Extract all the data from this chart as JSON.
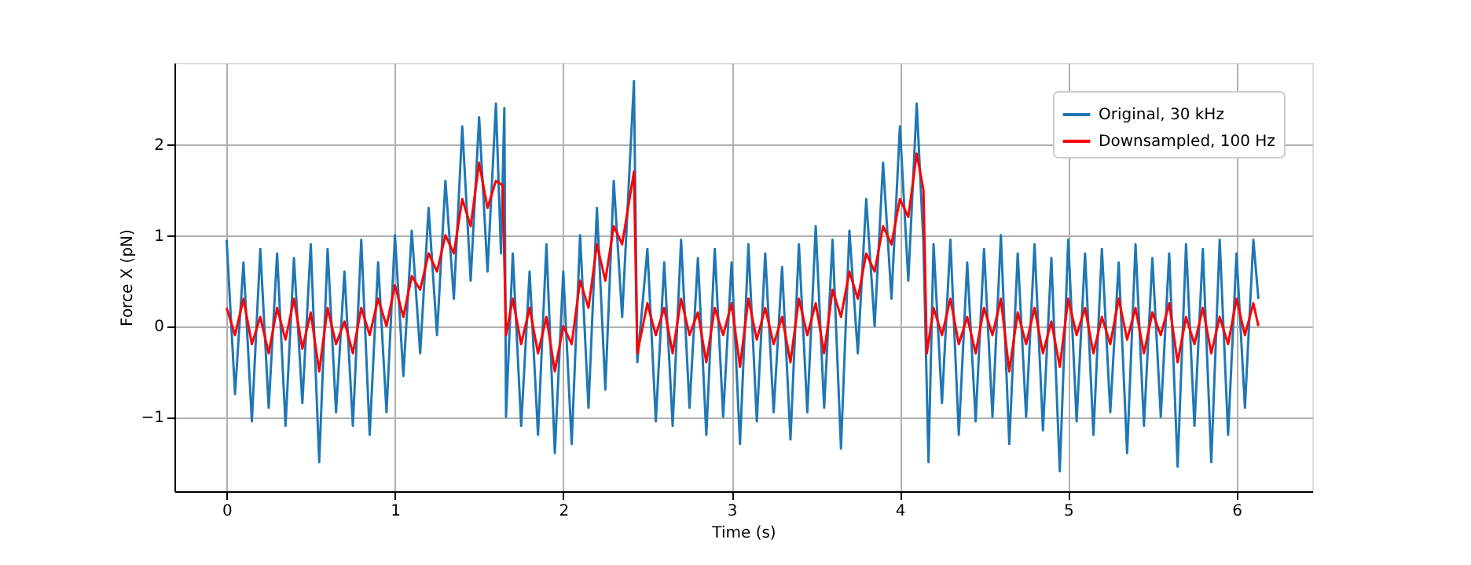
{
  "chart_data": {
    "type": "line",
    "xlabel": "Time (s)",
    "ylabel": "Force X (pN)",
    "xlim": [
      -0.31,
      6.45
    ],
    "ylim": [
      -1.82,
      2.9
    ],
    "xticks": [
      0,
      1,
      2,
      3,
      4,
      5,
      6
    ],
    "yticks": [
      {
        "value": -1,
        "label": "−1"
      },
      0,
      1,
      2
    ],
    "grid": true,
    "legend": "top right",
    "marker": "none",
    "line_style": "solid",
    "series": [
      {
        "name": "Original, 30 kHz",
        "color": "#1f77b4",
        "x": [
          0,
          0.05,
          0.1,
          0.15,
          0.2,
          0.25,
          0.3,
          0.35,
          0.4,
          0.45,
          0.5,
          0.55,
          0.6,
          0.65,
          0.7,
          0.75,
          0.8,
          0.85,
          0.9,
          0.95,
          1.0,
          1.05,
          1.1,
          1.15,
          1.2,
          1.25,
          1.3,
          1.35,
          1.4,
          1.45,
          1.5,
          1.55,
          1.6,
          1.63,
          1.65,
          1.66,
          1.7,
          1.75,
          1.8,
          1.85,
          1.9,
          1.95,
          2.0,
          2.05,
          2.1,
          2.15,
          2.2,
          2.25,
          2.3,
          2.35,
          2.42,
          2.44,
          2.5,
          2.55,
          2.6,
          2.65,
          2.7,
          2.75,
          2.8,
          2.85,
          2.9,
          2.95,
          3.0,
          3.05,
          3.1,
          3.15,
          3.2,
          3.25,
          3.3,
          3.35,
          3.4,
          3.45,
          3.5,
          3.55,
          3.6,
          3.65,
          3.7,
          3.75,
          3.8,
          3.85,
          3.9,
          3.95,
          4.0,
          4.05,
          4.1,
          4.14,
          4.17,
          4.2,
          4.25,
          4.3,
          4.35,
          4.4,
          4.45,
          4.5,
          4.55,
          4.6,
          4.65,
          4.7,
          4.75,
          4.8,
          4.85,
          4.9,
          4.95,
          5.0,
          5.05,
          5.1,
          5.15,
          5.2,
          5.25,
          5.3,
          5.35,
          5.4,
          5.45,
          5.5,
          5.55,
          5.6,
          5.65,
          5.7,
          5.75,
          5.8,
          5.85,
          5.9,
          5.95,
          6.0,
          6.05,
          6.1,
          6.13
        ],
        "values": [
          0.95,
          -0.75,
          0.7,
          -1.05,
          0.85,
          -0.9,
          0.8,
          -1.1,
          0.75,
          -0.85,
          0.9,
          -1.5,
          0.85,
          -0.95,
          0.6,
          -1.1,
          0.95,
          -1.2,
          0.7,
          -0.95,
          1.0,
          -0.55,
          1.05,
          -0.3,
          1.3,
          -0.1,
          1.6,
          0.3,
          2.2,
          0.5,
          2.3,
          0.6,
          2.45,
          0.8,
          2.4,
          -1.0,
          0.8,
          -1.1,
          0.6,
          -1.2,
          0.9,
          -1.4,
          0.6,
          -1.3,
          1.0,
          -0.9,
          1.3,
          -0.7,
          1.6,
          0.1,
          2.7,
          -0.4,
          0.85,
          -1.05,
          0.7,
          -1.1,
          0.95,
          -0.9,
          0.75,
          -1.2,
          0.85,
          -1.0,
          0.7,
          -1.3,
          0.9,
          -1.05,
          0.8,
          -0.95,
          0.65,
          -1.25,
          0.9,
          -0.95,
          1.1,
          -0.9,
          0.95,
          -1.35,
          1.05,
          -0.3,
          1.4,
          0.0,
          1.8,
          0.3,
          2.2,
          0.5,
          2.45,
          0.9,
          -1.5,
          0.9,
          -0.85,
          0.95,
          -1.2,
          0.7,
          -1.05,
          0.85,
          -1.0,
          1.0,
          -1.3,
          0.8,
          -1.0,
          0.9,
          -1.15,
          0.75,
          -1.6,
          0.95,
          -1.05,
          0.8,
          -1.2,
          0.85,
          -0.95,
          0.7,
          -1.4,
          0.9,
          -1.1,
          0.75,
          -1.0,
          0.8,
          -1.55,
          0.9,
          -1.1,
          0.85,
          -1.5,
          0.95,
          -1.2,
          0.8,
          -0.9,
          0.95,
          0.3
        ]
      },
      {
        "name": "Downsampled, 100 Hz",
        "color": "#ff0000",
        "x": [
          0,
          0.05,
          0.1,
          0.15,
          0.2,
          0.25,
          0.3,
          0.35,
          0.4,
          0.45,
          0.5,
          0.55,
          0.6,
          0.65,
          0.7,
          0.75,
          0.8,
          0.85,
          0.9,
          0.95,
          1.0,
          1.05,
          1.1,
          1.15,
          1.2,
          1.25,
          1.3,
          1.35,
          1.4,
          1.45,
          1.5,
          1.55,
          1.6,
          1.64,
          1.66,
          1.7,
          1.75,
          1.8,
          1.85,
          1.9,
          1.95,
          2.0,
          2.05,
          2.1,
          2.15,
          2.2,
          2.25,
          2.3,
          2.35,
          2.42,
          2.44,
          2.5,
          2.55,
          2.6,
          2.65,
          2.7,
          2.75,
          2.8,
          2.85,
          2.9,
          2.95,
          3.0,
          3.05,
          3.1,
          3.15,
          3.2,
          3.25,
          3.3,
          3.35,
          3.4,
          3.45,
          3.5,
          3.55,
          3.6,
          3.65,
          3.7,
          3.75,
          3.8,
          3.85,
          3.9,
          3.95,
          4.0,
          4.05,
          4.1,
          4.14,
          4.16,
          4.2,
          4.25,
          4.3,
          4.35,
          4.4,
          4.45,
          4.5,
          4.55,
          4.6,
          4.65,
          4.7,
          4.75,
          4.8,
          4.85,
          4.9,
          4.95,
          5.0,
          5.05,
          5.1,
          5.15,
          5.2,
          5.25,
          5.3,
          5.35,
          5.4,
          5.45,
          5.5,
          5.55,
          5.6,
          5.65,
          5.7,
          5.75,
          5.8,
          5.85,
          5.9,
          5.95,
          6.0,
          6.05,
          6.1,
          6.13
        ],
        "values": [
          0.2,
          -0.1,
          0.3,
          -0.2,
          0.1,
          -0.3,
          0.2,
          -0.15,
          0.3,
          -0.25,
          0.15,
          -0.5,
          0.2,
          -0.2,
          0.05,
          -0.3,
          0.2,
          -0.1,
          0.3,
          0.0,
          0.45,
          0.1,
          0.55,
          0.4,
          0.8,
          0.6,
          1.0,
          0.8,
          1.4,
          1.1,
          1.8,
          1.3,
          1.6,
          1.55,
          -0.1,
          0.3,
          -0.2,
          0.2,
          -0.3,
          0.1,
          -0.5,
          0.0,
          -0.2,
          0.5,
          0.2,
          0.9,
          0.5,
          1.1,
          0.9,
          1.7,
          -0.3,
          0.25,
          -0.1,
          0.2,
          -0.3,
          0.3,
          -0.1,
          0.15,
          -0.4,
          0.2,
          -0.1,
          0.25,
          -0.45,
          0.3,
          -0.15,
          0.2,
          -0.2,
          0.1,
          -0.4,
          0.3,
          -0.1,
          0.25,
          -0.3,
          0.4,
          0.1,
          0.6,
          0.3,
          0.8,
          0.6,
          1.1,
          0.9,
          1.4,
          1.2,
          1.9,
          1.5,
          -0.3,
          0.2,
          -0.1,
          0.3,
          -0.2,
          0.1,
          -0.3,
          0.2,
          -0.1,
          0.3,
          -0.5,
          0.15,
          -0.2,
          0.2,
          -0.3,
          0.05,
          -0.45,
          0.3,
          -0.1,
          0.2,
          -0.3,
          0.1,
          -0.2,
          0.3,
          -0.15,
          0.2,
          -0.3,
          0.15,
          -0.1,
          0.25,
          -0.4,
          0.1,
          -0.2,
          0.2,
          -0.3,
          0.1,
          -0.2,
          0.3,
          -0.1,
          0.25,
          0.0
        ]
      }
    ]
  }
}
